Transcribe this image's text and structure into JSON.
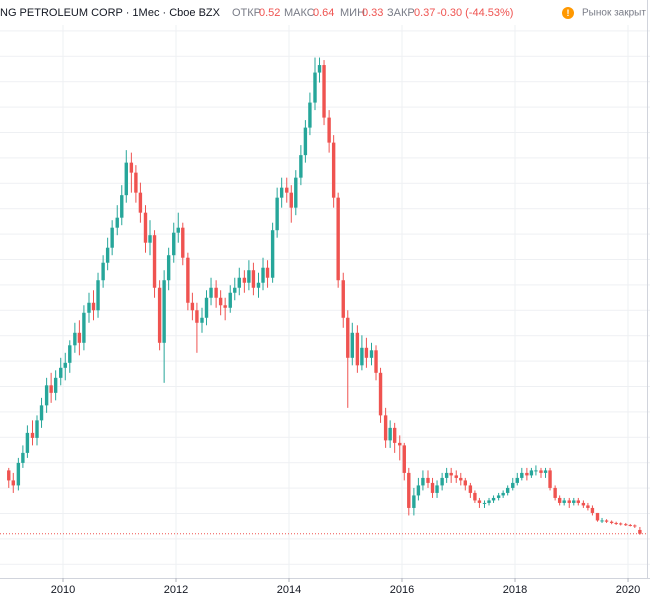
{
  "chart_data": {
    "type": "candlestick",
    "header": {
      "symbol": "NG PETROLEUM CORP · 1Мес · Cboe BZX",
      "open_label": "ОТКР",
      "high_label": "МАКС",
      "low_label": "МИН",
      "close_label": "ЗАКР",
      "change": "-0.30 (-44.53%)",
      "market_status": "Рынок закрыт",
      "status_icon": "!"
    },
    "up_color": "#26a69a",
    "down_color": "#ef5350",
    "x": [
      2009.0,
      2009.08,
      2009.17,
      2009.25,
      2009.33,
      2009.42,
      2009.5,
      2009.58,
      2009.67,
      2009.75,
      2009.83,
      2009.92,
      2010.0,
      2010.08,
      2010.17,
      2010.25,
      2010.33,
      2010.42,
      2010.5,
      2010.58,
      2010.67,
      2010.75,
      2010.83,
      2010.92,
      2011.0,
      2011.08,
      2011.17,
      2011.25,
      2011.33,
      2011.42,
      2011.5,
      2011.58,
      2011.67,
      2011.75,
      2011.83,
      2011.92,
      2012.0,
      2012.08,
      2012.17,
      2012.25,
      2012.33,
      2012.42,
      2012.5,
      2012.58,
      2012.67,
      2012.75,
      2012.83,
      2012.92,
      2013.0,
      2013.08,
      2013.17,
      2013.25,
      2013.33,
      2013.42,
      2013.5,
      2013.58,
      2013.67,
      2013.75,
      2013.83,
      2013.92,
      2014.0,
      2014.08,
      2014.17,
      2014.25,
      2014.33,
      2014.42,
      2014.5,
      2014.58,
      2014.67,
      2014.75,
      2014.83,
      2014.92,
      2015.0,
      2015.08,
      2015.17,
      2015.25,
      2015.33,
      2015.42,
      2015.5,
      2015.58,
      2015.67,
      2015.75,
      2015.83,
      2015.92,
      2016.0,
      2016.08,
      2016.17,
      2016.25,
      2016.33,
      2016.42,
      2016.5,
      2016.58,
      2016.67,
      2016.75,
      2016.83,
      2016.92,
      2017.0,
      2017.08,
      2017.17,
      2017.25,
      2017.33,
      2017.42,
      2017.5,
      2017.58,
      2017.67,
      2017.75,
      2017.83,
      2017.92,
      2018.0,
      2018.08,
      2018.17,
      2018.25,
      2018.33,
      2018.42,
      2018.5,
      2018.58,
      2018.67,
      2018.75,
      2018.83,
      2018.92,
      2019.0,
      2019.08,
      2019.17,
      2019.25,
      2019.33,
      2019.42,
      2019.5,
      2019.58,
      2019.67,
      2019.75,
      2019.83,
      2019.92,
      2020.0,
      2020.08,
      2020.17
    ],
    "open": [
      2.9,
      2.5,
      2.3,
      3.2,
      3.6,
      4.4,
      4.2,
      4.9,
      5.5,
      6.3,
      6.0,
      6.6,
      7.0,
      7.2,
      7.9,
      8.4,
      8.0,
      9.2,
      9.6,
      9.3,
      10.5,
      11.2,
      11.8,
      12.6,
      13.0,
      13.9,
      15.2,
      14.8,
      14.0,
      13.2,
      12.0,
      12.3,
      10.2,
      8.0,
      10.5,
      11.5,
      12.4,
      12.6,
      11.4,
      9.6,
      9.3,
      8.8,
      9.0,
      9.8,
      10.2,
      9.8,
      9.5,
      9.4,
      10.0,
      10.2,
      10.6,
      10.4,
      10.9,
      10.2,
      10.4,
      11.0,
      10.6,
      12.5,
      13.8,
      14.2,
      14.0,
      13.4,
      14.6,
      15.5,
      16.6,
      17.6,
      18.8,
      19.1,
      17.0,
      16.0,
      13.8,
      10.5,
      9.0,
      7.4,
      8.4,
      7.1,
      7.8,
      7.4,
      7.7,
      6.8,
      5.1,
      4.1,
      4.6,
      4.0,
      3.9,
      2.8,
      1.4,
      1.9,
      2.3,
      2.6,
      2.4,
      2.0,
      2.3,
      2.6,
      2.8,
      2.7,
      2.6,
      2.5,
      2.3,
      2.0,
      1.7,
      1.6,
      1.6,
      1.7,
      1.8,
      1.9,
      2.0,
      2.2,
      2.4,
      2.6,
      2.8,
      2.7,
      2.9,
      2.9,
      2.8,
      2.9,
      2.2,
      1.8,
      1.6,
      1.7,
      1.6,
      1.7,
      1.6,
      1.5,
      1.4,
      1.2,
      0.9,
      0.9,
      0.85,
      0.8,
      0.78,
      0.75,
      0.72,
      0.7,
      0.52
    ],
    "high": [
      3.0,
      2.8,
      3.4,
      3.9,
      4.7,
      4.9,
      5.1,
      5.8,
      6.6,
      6.8,
      6.9,
      7.4,
      7.6,
      8.1,
      8.8,
      8.9,
      9.5,
      10.0,
      10.1,
      10.8,
      11.5,
      12.2,
      12.9,
      13.5,
      14.3,
      15.7,
      15.6,
      15.1,
      14.4,
      13.5,
      12.9,
      12.5,
      10.5,
      10.9,
      11.8,
      12.8,
      13.2,
      12.8,
      11.6,
      10.0,
      9.6,
      9.4,
      10.1,
      10.6,
      10.5,
      10.1,
      9.8,
      10.3,
      10.6,
      11.0,
      10.9,
      11.3,
      11.2,
      10.8,
      11.4,
      11.3,
      12.8,
      14.2,
      14.6,
      14.6,
      14.3,
      14.9,
      15.9,
      16.9,
      18.0,
      19.4,
      19.4,
      19.3,
      17.3,
      16.3,
      14.0,
      10.8,
      9.3,
      8.8,
      8.7,
      8.3,
      8.2,
      8.0,
      7.9,
      7.0,
      5.4,
      4.9,
      4.8,
      4.3,
      4.0,
      3.0,
      2.2,
      2.6,
      2.9,
      2.9,
      2.6,
      2.5,
      2.8,
      3.0,
      3.0,
      2.9,
      2.8,
      2.6,
      2.4,
      2.1,
      1.8,
      1.7,
      1.8,
      1.9,
      2.0,
      2.1,
      2.3,
      2.6,
      2.8,
      3.0,
      3.0,
      3.0,
      3.1,
      3.0,
      3.0,
      3.0,
      2.3,
      1.9,
      1.8,
      1.8,
      1.8,
      1.8,
      1.7,
      1.6,
      1.5,
      1.2,
      1.0,
      0.95,
      0.9,
      0.85,
      0.82,
      0.8,
      0.76,
      0.74,
      0.64
    ],
    "low": [
      2.2,
      2.0,
      2.1,
      3.0,
      3.4,
      3.9,
      3.9,
      4.6,
      5.2,
      5.6,
      5.7,
      6.3,
      6.5,
      6.8,
      7.6,
      7.5,
      7.7,
      8.8,
      8.9,
      9.0,
      10.2,
      10.9,
      11.5,
      12.3,
      12.7,
      13.6,
      14.0,
      13.6,
      12.8,
      11.6,
      11.5,
      9.8,
      7.7,
      6.4,
      10.1,
      11.2,
      12.0,
      11.1,
      9.3,
      8.9,
      7.6,
      8.4,
      8.7,
      9.5,
      9.4,
      9.1,
      8.9,
      9.2,
      9.7,
      9.9,
      10.0,
      10.1,
      9.9,
      9.8,
      10.1,
      10.2,
      10.4,
      12.2,
      13.4,
      13.6,
      12.8,
      13.1,
      14.3,
      15.2,
      16.3,
      17.3,
      18.4,
      16.7,
      15.6,
      13.4,
      10.2,
      8.6,
      5.4,
      7.1,
      6.8,
      6.9,
      7.0,
      7.1,
      6.5,
      4.8,
      3.8,
      3.8,
      3.6,
      3.3,
      2.5,
      1.1,
      1.1,
      1.7,
      2.1,
      2.2,
      1.8,
      1.8,
      2.1,
      2.4,
      2.4,
      2.4,
      2.3,
      2.1,
      1.8,
      1.6,
      1.4,
      1.4,
      1.5,
      1.6,
      1.7,
      1.8,
      1.9,
      2.1,
      2.3,
      2.5,
      2.5,
      2.6,
      2.7,
      2.6,
      2.6,
      2.1,
      1.7,
      1.5,
      1.5,
      1.4,
      1.5,
      1.5,
      1.4,
      1.3,
      1.1,
      0.85,
      0.8,
      0.8,
      0.75,
      0.72,
      0.7,
      0.68,
      0.66,
      0.6,
      0.33
    ],
    "close": [
      2.5,
      2.3,
      3.2,
      3.6,
      4.4,
      4.2,
      4.9,
      5.5,
      6.3,
      6.0,
      6.6,
      7.0,
      7.2,
      7.9,
      8.4,
      8.0,
      9.2,
      9.6,
      9.3,
      10.5,
      11.2,
      11.8,
      12.6,
      13.0,
      13.9,
      15.2,
      14.8,
      14.0,
      13.2,
      12.0,
      12.3,
      10.2,
      8.0,
      10.5,
      11.5,
      12.4,
      12.6,
      11.4,
      9.6,
      9.3,
      8.8,
      9.0,
      9.8,
      10.2,
      9.8,
      9.5,
      9.4,
      10.0,
      10.2,
      10.6,
      10.4,
      10.9,
      10.2,
      10.4,
      11.0,
      10.6,
      12.5,
      13.8,
      14.2,
      14.0,
      13.4,
      14.6,
      15.5,
      16.6,
      17.6,
      18.8,
      19.1,
      17.0,
      16.0,
      13.8,
      10.5,
      9.0,
      7.4,
      8.4,
      7.1,
      7.8,
      7.4,
      7.7,
      6.8,
      5.1,
      4.1,
      4.6,
      4.0,
      3.9,
      2.8,
      1.4,
      1.9,
      2.3,
      2.6,
      2.4,
      2.0,
      2.3,
      2.6,
      2.8,
      2.7,
      2.6,
      2.5,
      2.3,
      2.0,
      1.7,
      1.6,
      1.6,
      1.7,
      1.8,
      1.9,
      2.0,
      2.2,
      2.4,
      2.6,
      2.8,
      2.7,
      2.9,
      2.9,
      2.8,
      2.9,
      2.2,
      1.8,
      1.6,
      1.7,
      1.6,
      1.7,
      1.6,
      1.5,
      1.4,
      1.2,
      0.9,
      0.9,
      0.85,
      0.8,
      0.78,
      0.75,
      0.72,
      0.7,
      0.67,
      0.37
    ],
    "xlim": [
      2008.885,
      2020.389
    ],
    "xticks": [
      2010,
      2012,
      2014,
      2016,
      2018,
      2020
    ],
    "ylim": [
      -1.4,
      21.7
    ]
  }
}
